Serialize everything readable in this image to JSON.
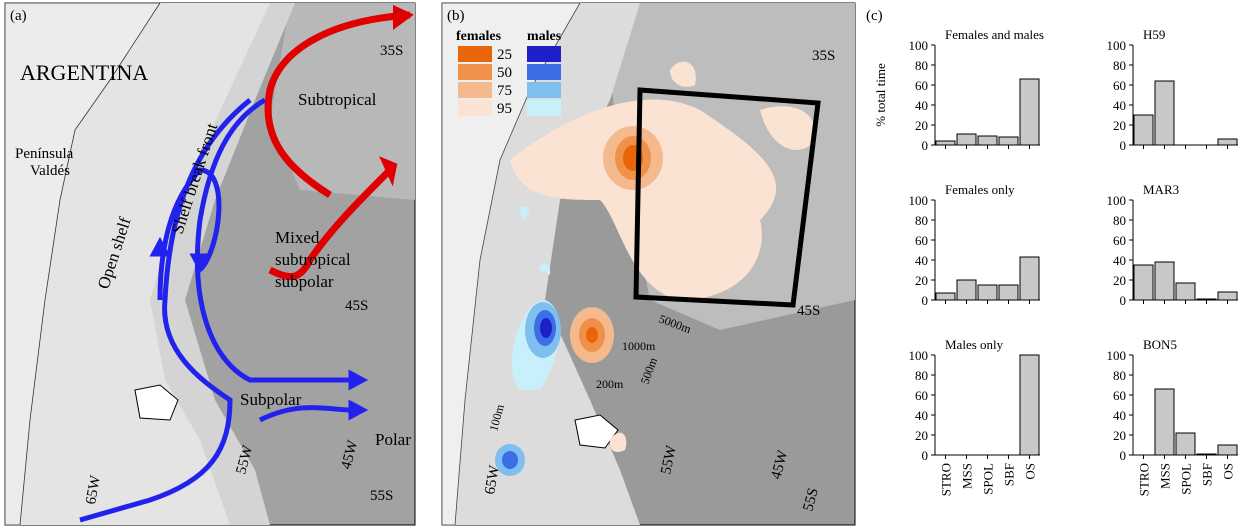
{
  "panel_a": {
    "label": "(a)",
    "texts": [
      "ARGENTINA",
      "Península",
      "Valdés",
      "Open shelf",
      "Shelf break front",
      "Subtropical",
      "Mixed",
      "subtropical",
      "subpolar",
      "Subpolar",
      "Polar",
      "35S",
      "45S",
      "55S",
      "55W",
      "45W",
      "65W"
    ]
  },
  "panel_b": {
    "label": "(b)",
    "legend": {
      "females": "females",
      "males": "males",
      "levels": [
        25,
        50,
        75,
        95
      ]
    },
    "texts": [
      "35S",
      "45S",
      "55S",
      "65W",
      "55W",
      "45W",
      "5000m",
      "1000m",
      "500m",
      "200m",
      "100m"
    ]
  },
  "panel_c": {
    "label": "(c)",
    "ylabel": "% total time"
  },
  "chart_data": [
    {
      "type": "bar",
      "title": "Females and males",
      "categories": [
        null,
        null,
        null,
        null,
        null
      ],
      "values": [
        4,
        11,
        9,
        8,
        66
      ],
      "color": "#c8c8c8",
      "ylim": [
        0,
        100
      ],
      "yticks": [
        0,
        20,
        40,
        60,
        80,
        100
      ]
    },
    {
      "type": "bar",
      "title": "H59",
      "categories": [
        null,
        null,
        null,
        null,
        null
      ],
      "values": [
        30,
        64,
        0,
        0,
        6
      ],
      "color": "#c8c8c8",
      "ylim": [
        0,
        100
      ],
      "yticks": [
        0,
        20,
        40,
        60,
        80,
        100
      ]
    },
    {
      "type": "bar",
      "title": "Females only",
      "categories": [
        null,
        null,
        null,
        null,
        null
      ],
      "values": [
        7,
        20,
        15,
        15,
        43
      ],
      "color": "#c8c8c8",
      "ylim": [
        0,
        100
      ],
      "yticks": [
        0,
        20,
        40,
        60,
        80,
        100
      ]
    },
    {
      "type": "bar",
      "title": "MAR3",
      "categories": [
        null,
        null,
        null,
        null,
        null
      ],
      "values": [
        35,
        38,
        17,
        1,
        8
      ],
      "color": "#c8c8c8",
      "ylim": [
        0,
        100
      ],
      "yticks": [
        0,
        20,
        40,
        60,
        80,
        100
      ]
    },
    {
      "type": "bar",
      "title": "Males only",
      "categories": [
        "STRO",
        "MSS",
        "SPOL",
        "SBF",
        "OS"
      ],
      "values": [
        0,
        0,
        0,
        0,
        100
      ],
      "color": "#c8c8c8",
      "ylim": [
        0,
        100
      ],
      "yticks": [
        0,
        20,
        40,
        60,
        80,
        100
      ]
    },
    {
      "type": "bar",
      "title": "BON5",
      "categories": [
        "STRO",
        "MSS",
        "SPOL",
        "SBF",
        "OS"
      ],
      "values": [
        0,
        66,
        22,
        1,
        10
      ],
      "color": "#c8c8c8",
      "ylim": [
        0,
        100
      ],
      "yticks": [
        0,
        20,
        40,
        60,
        80,
        100
      ]
    }
  ]
}
